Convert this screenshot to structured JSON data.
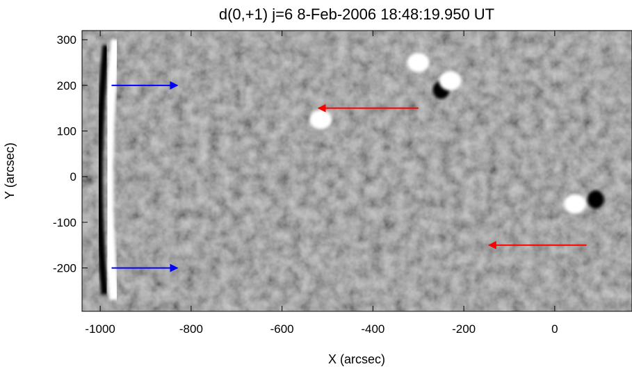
{
  "chart_data": {
    "type": "heatmap",
    "title": "d(0,+1) j=6  8-Feb-2006 18:48:19.950 UT",
    "xlabel": "X (arcsec)",
    "ylabel": "Y (arcsec)",
    "xlim": [
      -1040,
      170
    ],
    "ylim": [
      -295,
      320
    ],
    "colormap": "grayscale (running-difference image)",
    "x_ticks": [
      -1000,
      -800,
      -600,
      -400,
      -200,
      0
    ],
    "x_tick_labels": [
      "-1000",
      "-800",
      "-600",
      "-400",
      "-200",
      "0"
    ],
    "y_ticks": [
      300,
      200,
      100,
      0,
      -100,
      -200
    ],
    "y_tick_labels": [
      "300",
      "200",
      "100",
      "0",
      "-100",
      "-200"
    ],
    "annotations": [
      {
        "type": "arrow",
        "color": "#0000ff",
        "from": [
          -975,
          200
        ],
        "to": [
          -830,
          200
        ]
      },
      {
        "type": "arrow",
        "color": "#0000ff",
        "from": [
          -975,
          -200
        ],
        "to": [
          -830,
          -200
        ]
      },
      {
        "type": "arrow",
        "color": "#ff0000",
        "from": [
          -300,
          150
        ],
        "to": [
          -520,
          150
        ]
      },
      {
        "type": "arrow",
        "color": "#ff0000",
        "from": [
          70,
          -150
        ],
        "to": [
          -145,
          -150
        ]
      }
    ],
    "features": [
      {
        "kind": "bright-limb-arc",
        "x": -975,
        "y_range": [
          -270,
          300
        ]
      },
      {
        "kind": "bright-spot",
        "x": -300,
        "y": 250
      },
      {
        "kind": "dark-spot",
        "x": -250,
        "y": 190
      },
      {
        "kind": "bright-spot",
        "x": -230,
        "y": 210
      },
      {
        "kind": "bright-spot",
        "x": 45,
        "y": -60
      },
      {
        "kind": "dark-spot",
        "x": 90,
        "y": -50
      },
      {
        "kind": "bright-spot",
        "x": -515,
        "y": 125
      }
    ]
  }
}
